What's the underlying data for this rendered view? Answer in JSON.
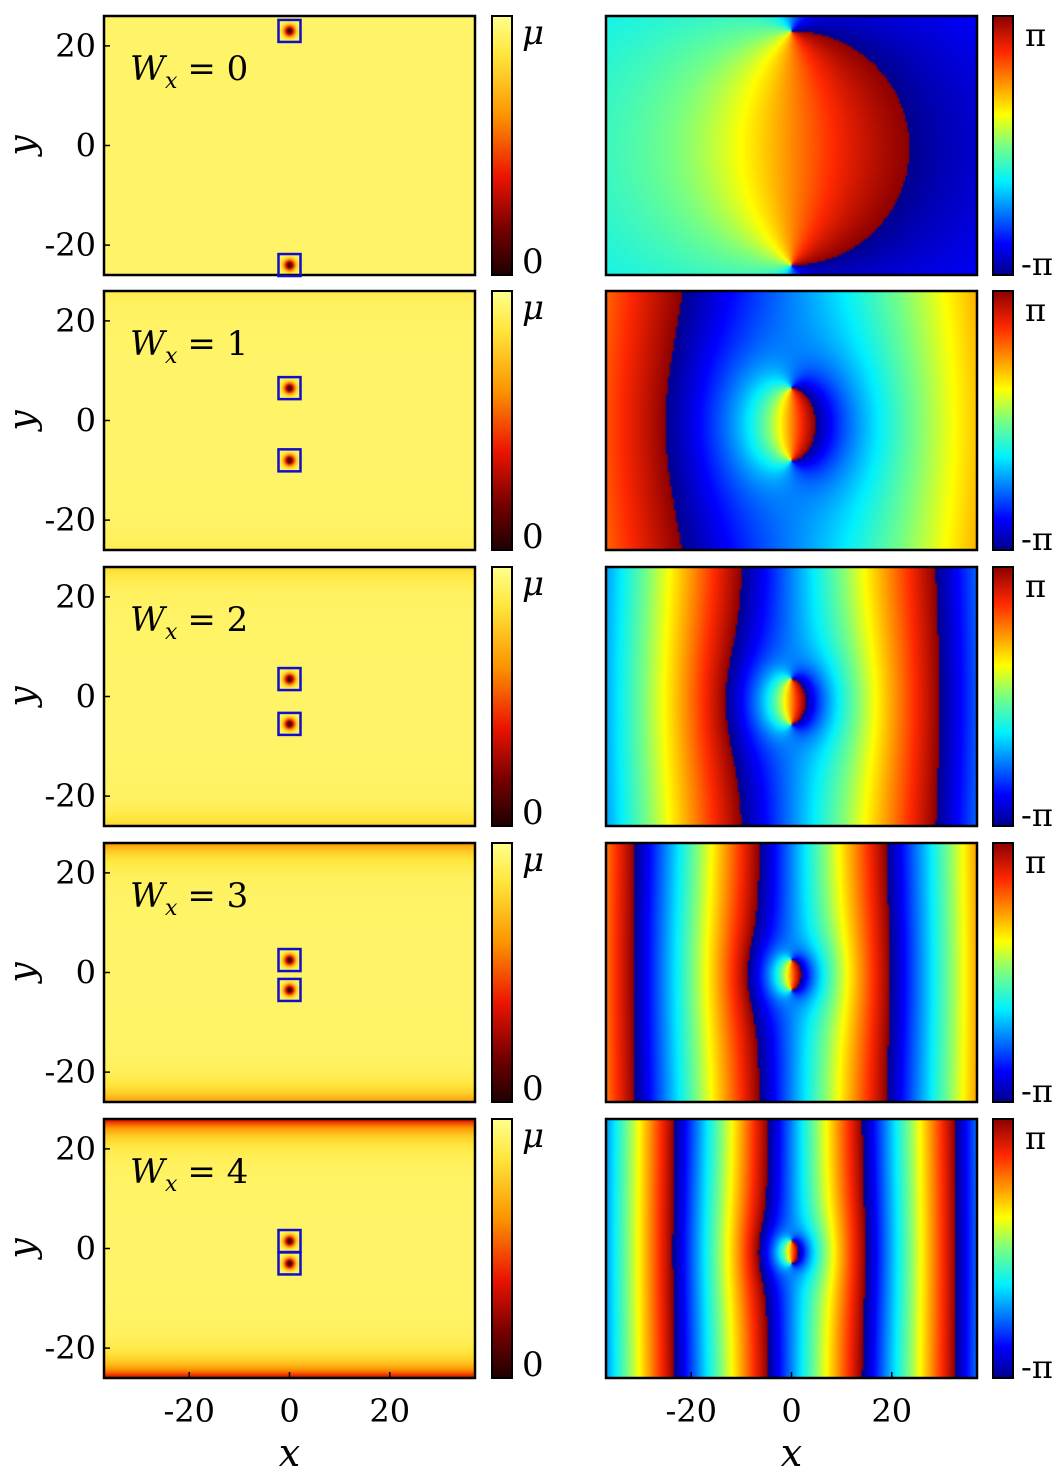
{
  "figure": {
    "x_axis_label": "x",
    "y_axis_label": "y",
    "x_ticks": [
      "-20",
      "0",
      "20"
    ],
    "y_ticks": [
      "20",
      "0",
      "-20"
    ],
    "density_colorbar": {
      "top_label": "μ",
      "bottom_label": "0",
      "colormap": "hot"
    },
    "phase_colorbar": {
      "top_label": "π",
      "bottom_label": "-π",
      "colormap": "jet"
    }
  },
  "chart_data": [
    {
      "type": "heatmap",
      "quantity": "density",
      "panel_label": "W",
      "panel_label_sub": "x",
      "panel_label_value": "= 0",
      "Wx": 0,
      "xlim": [
        -37,
        37
      ],
      "ylim": [
        -26,
        26
      ],
      "vortex_y": [
        23,
        -24
      ],
      "boundary_depletion": 0.0
    },
    {
      "type": "heatmap",
      "quantity": "phase",
      "Wx": 0,
      "xlim": [
        -37,
        37
      ],
      "ylim": [
        -26,
        26
      ],
      "vortex_y": [
        23,
        -24
      ]
    },
    {
      "type": "heatmap",
      "quantity": "density",
      "panel_label": "W",
      "panel_label_sub": "x",
      "panel_label_value": "= 1",
      "Wx": 1,
      "xlim": [
        -37,
        37
      ],
      "ylim": [
        -26,
        26
      ],
      "vortex_y": [
        6.5,
        -8
      ],
      "boundary_depletion": 0.05
    },
    {
      "type": "heatmap",
      "quantity": "phase",
      "Wx": 1,
      "xlim": [
        -37,
        37
      ],
      "ylim": [
        -26,
        26
      ],
      "vortex_y": [
        6.5,
        -8
      ]
    },
    {
      "type": "heatmap",
      "quantity": "density",
      "panel_label": "W",
      "panel_label_sub": "x",
      "panel_label_value": "= 2",
      "Wx": 2,
      "xlim": [
        -37,
        37
      ],
      "ylim": [
        -26,
        26
      ],
      "vortex_y": [
        3.5,
        -5.5
      ],
      "boundary_depletion": 0.15
    },
    {
      "type": "heatmap",
      "quantity": "phase",
      "Wx": 2,
      "xlim": [
        -37,
        37
      ],
      "ylim": [
        -26,
        26
      ],
      "vortex_y": [
        3.5,
        -5.5
      ]
    },
    {
      "type": "heatmap",
      "quantity": "density",
      "panel_label": "W",
      "panel_label_sub": "x",
      "panel_label_value": "= 3",
      "Wx": 3,
      "xlim": [
        -37,
        37
      ],
      "ylim": [
        -26,
        26
      ],
      "vortex_y": [
        2.5,
        -3.5
      ],
      "boundary_depletion": 0.35
    },
    {
      "type": "heatmap",
      "quantity": "phase",
      "Wx": 3,
      "xlim": [
        -37,
        37
      ],
      "ylim": [
        -26,
        26
      ],
      "vortex_y": [
        2.5,
        -3.5
      ]
    },
    {
      "type": "heatmap",
      "quantity": "density",
      "panel_label": "W",
      "panel_label_sub": "x",
      "panel_label_value": "= 4",
      "Wx": 4,
      "xlim": [
        -37,
        37
      ],
      "ylim": [
        -26,
        26
      ],
      "vortex_y": [
        1.5,
        -3
      ],
      "boundary_depletion": 0.7
    },
    {
      "type": "heatmap",
      "quantity": "phase",
      "Wx": 4,
      "xlim": [
        -37,
        37
      ],
      "ylim": [
        -26,
        26
      ],
      "vortex_y": [
        1.5,
        -3
      ]
    }
  ]
}
